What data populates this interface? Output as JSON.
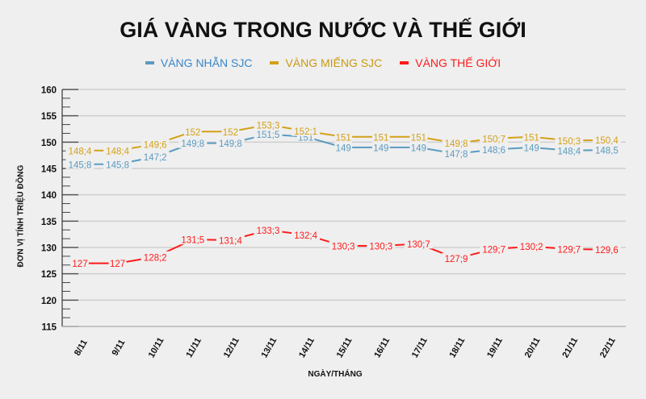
{
  "title": "GIÁ VÀNG TRONG NƯỚC VÀ THẾ GIỚI",
  "legend": [
    {
      "label": "VÀNG NHẪN SJC",
      "color": "#5b9bc0",
      "text_color": "#3a86c8"
    },
    {
      "label": "VÀNG MIẾNG SJC",
      "color": "#d4a017",
      "text_color": "#c79a12"
    },
    {
      "label": "VÀNG THẾ GIỚI",
      "color": "#ff1a1a",
      "text_color": "#ff1a1a"
    }
  ],
  "y_axis_label": "ĐƠN VỊ TÍNH TRIỆU ĐỒNG",
  "x_axis_label": "NGÀY/THÁNG",
  "chart_data": {
    "type": "line",
    "title": "GIÁ VÀNG TRONG NƯỚC VÀ THẾ GIỚI",
    "xlabel": "NGÀY/THÁNG",
    "ylabel": "ĐƠN VỊ TÍNH TRIỆU ĐỒNG",
    "ylim": [
      115,
      160
    ],
    "yticks": [
      115,
      120,
      125,
      130,
      135,
      140,
      145,
      150,
      155,
      160
    ],
    "grid": true,
    "legend_position": "top",
    "categories": [
      "8/11",
      "9/11",
      "10/11",
      "11/11",
      "12/11",
      "13/11",
      "14/11",
      "15/11",
      "16/11",
      "17/11",
      "18/11",
      "19/11",
      "20/11",
      "21/11",
      "22/11"
    ],
    "series": [
      {
        "name": "VÀNG NHẪN SJC",
        "color": "#5b9bc0",
        "values": [
          145.8,
          145.8,
          147.2,
          149.8,
          149.8,
          151.5,
          151,
          149,
          149,
          149,
          147.8,
          148.6,
          149,
          148.4,
          148.5
        ],
        "labels": [
          "145;8",
          "145;8",
          "147;2",
          "149;8",
          "149;8",
          "151;5",
          "151",
          "149",
          "149",
          "149",
          "147;8",
          "148;6",
          "149",
          "148;4",
          "148,5"
        ]
      },
      {
        "name": "VÀNG MIẾNG SJC",
        "color": "#d4a017",
        "values": [
          148.4,
          148.4,
          149.6,
          152,
          152,
          153.3,
          152.1,
          151,
          151,
          151,
          149.8,
          150.7,
          151,
          150.3,
          150.4
        ],
        "labels": [
          "148;4",
          "148;4",
          "149;6",
          "152",
          "152",
          "153;3",
          "152;1",
          "151",
          "151",
          "151",
          "149;8",
          "150;7",
          "151",
          "150;3",
          "150,4"
        ]
      },
      {
        "name": "VÀNG THẾ GIỚI",
        "color": "#ff1a1a",
        "values": [
          127,
          127,
          128.2,
          131.5,
          131.4,
          133.3,
          132.4,
          130.3,
          130.3,
          130.7,
          127.9,
          129.7,
          130.2,
          129.7,
          129.6
        ],
        "labels": [
          "127",
          "127",
          "128;2",
          "131;5",
          "131;4",
          "133;3",
          "132;4",
          "130;3",
          "130;3",
          "130;7",
          "127;9",
          "129;7",
          "130;2",
          "129;7",
          "129,6"
        ]
      }
    ]
  }
}
